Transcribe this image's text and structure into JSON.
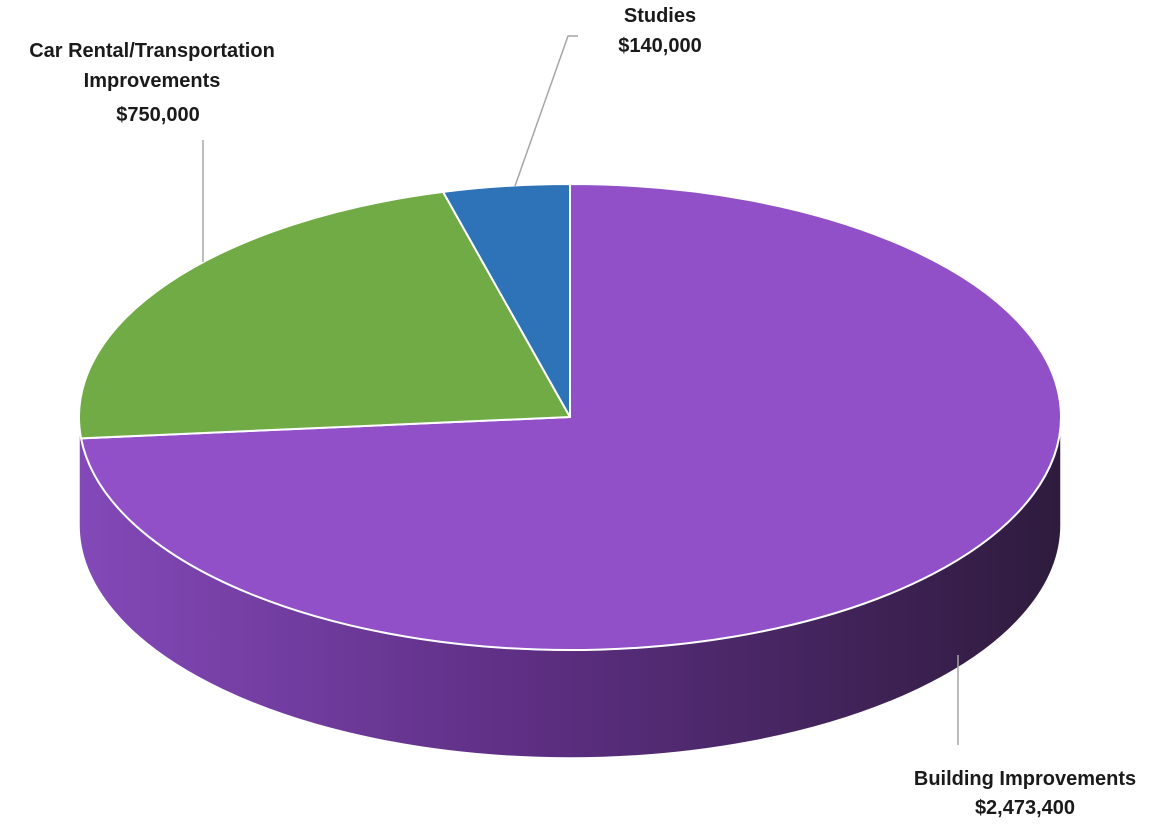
{
  "chart_data": {
    "type": "pie",
    "title": "",
    "series": [
      {
        "categories": [
          "Building Improvements",
          "Car Rental/Transportation Improvements",
          "Studies"
        ],
        "values": [
          2473400,
          750000,
          140000
        ],
        "value_labels": [
          "$2,473,400",
          "$750,000",
          "$140,000"
        ],
        "colors": [
          "#9150c8",
          "#70ab45",
          "#2e72b8"
        ]
      }
    ],
    "legend": "none",
    "style": "3d"
  }
}
